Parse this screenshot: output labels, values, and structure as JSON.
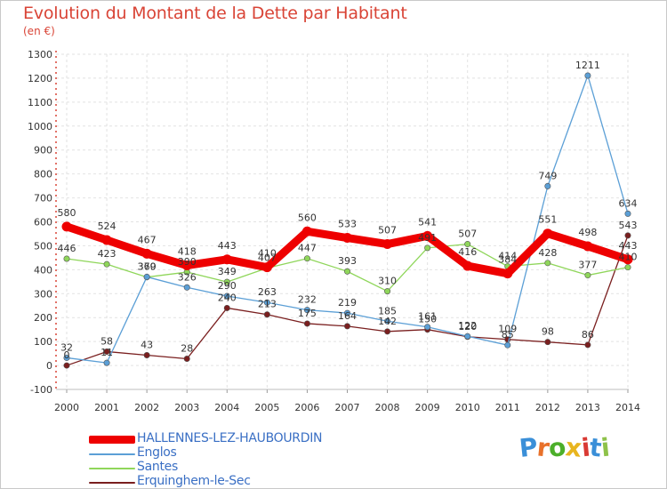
{
  "title": "Evolution du Montant de la Dette par Habitant",
  "subtitle": "(en €)",
  "logo": {
    "text": "Proxiti",
    "letters": [
      {
        "ch": "P",
        "color": "#3a8fd8"
      },
      {
        "ch": "r",
        "color": "#e8712a"
      },
      {
        "ch": "o",
        "color": "#4caf2a"
      },
      {
        "ch": "x",
        "color": "#e8b51f"
      },
      {
        "ch": "i",
        "color": "#d93a34"
      },
      {
        "ch": "t",
        "color": "#3a8fd8"
      },
      {
        "ch": "i",
        "color": "#8ec24a"
      }
    ]
  },
  "chart_data": {
    "type": "line",
    "title": "Evolution du Montant de la Dette par Habitant",
    "ylabel": "(en €)",
    "ylim": [
      -100,
      1300
    ],
    "yticks": [
      -100,
      0,
      100,
      200,
      300,
      400,
      500,
      600,
      700,
      800,
      900,
      1000,
      1100,
      1200,
      1300
    ],
    "x": [
      2000,
      2001,
      2002,
      2003,
      2004,
      2005,
      2006,
      2007,
      2008,
      2009,
      2010,
      2011,
      2012,
      2013,
      2014
    ],
    "grid": true,
    "legend_position": "bottom-left",
    "series": [
      {
        "name": "Erquinghem-le-Sec",
        "color": "#7a1f1f",
        "values": [
          0,
          58,
          43,
          28,
          240,
          213,
          175,
          164,
          142,
          150,
          120,
          109,
          98,
          86,
          543
        ],
        "labels": [
          "0",
          "58",
          "43",
          "28",
          "240",
          "213",
          "175",
          "164",
          "142",
          "150",
          "120",
          "109",
          "98",
          "86",
          "543"
        ]
      },
      {
        "name": "Santes",
        "color": "#8fd65a",
        "values": [
          446,
          423,
          369,
          390,
          349,
          407,
          447,
          393,
          310,
          491,
          507,
          414,
          428,
          377,
          410
        ],
        "labels": [
          "446",
          "423",
          "369",
          "390",
          "349",
          "407",
          "447",
          "393",
          "310",
          "491",
          "507",
          "414",
          "428",
          "377",
          "410"
        ]
      },
      {
        "name": "Englos",
        "color": "#5b9fd6",
        "values": [
          32,
          11,
          370,
          326,
          290,
          263,
          232,
          219,
          185,
          161,
          122,
          85,
          749,
          1211,
          634
        ],
        "labels": [
          "32",
          "11",
          "370",
          "326",
          "290",
          "263",
          "232",
          "219",
          "185",
          "161",
          "122",
          "85",
          "749",
          "1211",
          "634"
        ]
      },
      {
        "name": "HALLENNES-LEZ-HAUBOURDIN",
        "color": "#ee0000",
        "values": [
          580,
          524,
          467,
          418,
          443,
          410,
          560,
          533,
          507,
          541,
          416,
          384,
          551,
          498,
          443
        ],
        "labels": [
          "580",
          "524",
          "467",
          "418",
          "443",
          "410",
          "560",
          "533",
          "507",
          "541",
          "416",
          "384",
          "551",
          "498",
          "443"
        ]
      }
    ]
  },
  "legend": [
    {
      "label": "HALLENNES-LEZ-HAUBOURDIN",
      "color": "#ee0000"
    },
    {
      "label": "Englos",
      "color": "#5b9fd6"
    },
    {
      "label": "Santes",
      "color": "#8fd65a"
    },
    {
      "label": "Erquinghem-le-Sec",
      "color": "#7a1f1f"
    }
  ]
}
